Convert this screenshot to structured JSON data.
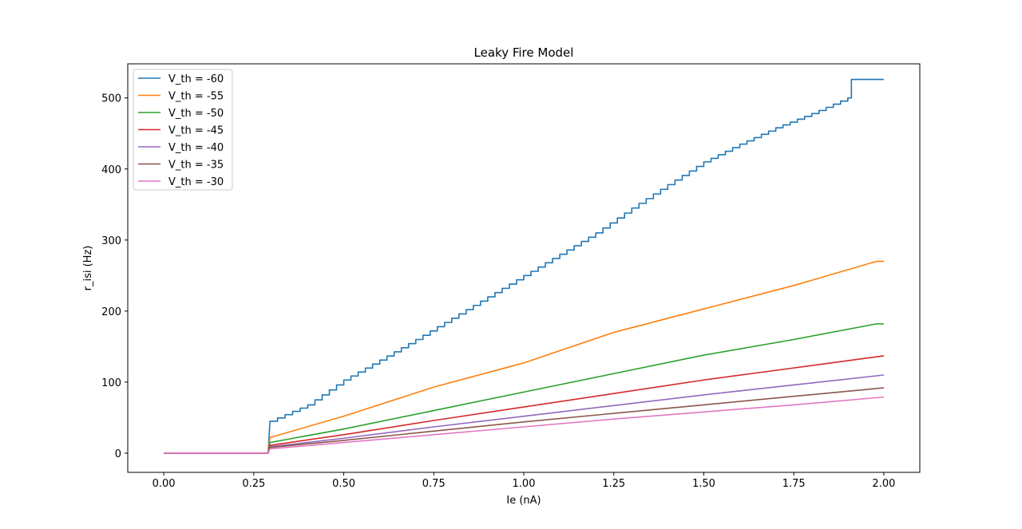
{
  "chart_data": {
    "type": "line",
    "title": "Leaky Fire Model",
    "xlabel": "Ie (nA)",
    "ylabel": "r_isi (Hz)",
    "xlim": [
      -0.1,
      2.1
    ],
    "ylim": [
      -27,
      548
    ],
    "xticks": [
      0.0,
      0.25,
      0.5,
      0.75,
      1.0,
      1.25,
      1.5,
      1.75,
      2.0
    ],
    "xtick_labels": [
      "0.00",
      "0.25",
      "0.50",
      "0.75",
      "1.00",
      "1.25",
      "1.50",
      "1.75",
      "2.00"
    ],
    "yticks": [
      0,
      100,
      200,
      300,
      400,
      500
    ],
    "ytick_labels": [
      "0",
      "100",
      "200",
      "300",
      "400",
      "500"
    ],
    "grid": false,
    "legend_position": "top-left",
    "series": [
      {
        "name": "V_th = -60",
        "color": "#1f77b4",
        "step": true,
        "points": [
          [
            0.0,
            0
          ],
          [
            0.28,
            0
          ],
          [
            0.29,
            0
          ],
          [
            0.295,
            45
          ],
          [
            0.4,
            68
          ],
          [
            0.5,
            103
          ],
          [
            0.6,
            131
          ],
          [
            0.7,
            160
          ],
          [
            0.8,
            190
          ],
          [
            0.9,
            220
          ],
          [
            1.0,
            250
          ],
          [
            1.1,
            280
          ],
          [
            1.2,
            310
          ],
          [
            1.3,
            345
          ],
          [
            1.4,
            378
          ],
          [
            1.5,
            410
          ],
          [
            1.6,
            435
          ],
          [
            1.7,
            458
          ],
          [
            1.8,
            478
          ],
          [
            1.9,
            500
          ],
          [
            1.91,
            526
          ],
          [
            2.0,
            526
          ]
        ]
      },
      {
        "name": "V_th = -55",
        "color": "#ff7f0e",
        "step": false,
        "points": [
          [
            0.0,
            0
          ],
          [
            0.28,
            0
          ],
          [
            0.29,
            0
          ],
          [
            0.295,
            22
          ],
          [
            0.5,
            52
          ],
          [
            0.75,
            93
          ],
          [
            1.0,
            127
          ],
          [
            1.25,
            170
          ],
          [
            1.5,
            203
          ],
          [
            1.75,
            236
          ],
          [
            1.98,
            270
          ],
          [
            2.0,
            270
          ]
        ]
      },
      {
        "name": "V_th = -50",
        "color": "#2ca02c",
        "step": false,
        "points": [
          [
            0.0,
            0
          ],
          [
            0.28,
            0
          ],
          [
            0.29,
            0
          ],
          [
            0.295,
            15
          ],
          [
            0.5,
            34
          ],
          [
            0.75,
            60
          ],
          [
            1.0,
            86
          ],
          [
            1.25,
            112
          ],
          [
            1.5,
            138
          ],
          [
            1.75,
            160
          ],
          [
            1.98,
            182
          ],
          [
            2.0,
            182
          ]
        ]
      },
      {
        "name": "V_th = -45",
        "color": "#d62728",
        "step": false,
        "points": [
          [
            0.0,
            0
          ],
          [
            0.28,
            0
          ],
          [
            0.29,
            0
          ],
          [
            0.295,
            11
          ],
          [
            0.5,
            26
          ],
          [
            0.75,
            46
          ],
          [
            1.0,
            65
          ],
          [
            1.25,
            84
          ],
          [
            1.5,
            103
          ],
          [
            1.75,
            120
          ],
          [
            2.0,
            137
          ]
        ]
      },
      {
        "name": "V_th = -40",
        "color": "#9467bd",
        "step": false,
        "points": [
          [
            0.0,
            0
          ],
          [
            0.28,
            0
          ],
          [
            0.29,
            0
          ],
          [
            0.295,
            9
          ],
          [
            0.5,
            21
          ],
          [
            0.75,
            37
          ],
          [
            1.0,
            52
          ],
          [
            1.25,
            67
          ],
          [
            1.5,
            82
          ],
          [
            1.75,
            96
          ],
          [
            2.0,
            110
          ]
        ]
      },
      {
        "name": "V_th = -35",
        "color": "#8c564b",
        "step": false,
        "points": [
          [
            0.0,
            0
          ],
          [
            0.28,
            0
          ],
          [
            0.29,
            0
          ],
          [
            0.295,
            8
          ],
          [
            0.5,
            18
          ],
          [
            0.75,
            31
          ],
          [
            1.0,
            44
          ],
          [
            1.25,
            56
          ],
          [
            1.5,
            68
          ],
          [
            1.75,
            80
          ],
          [
            2.0,
            92
          ]
        ]
      },
      {
        "name": "V_th = -30",
        "color": "#e377c2",
        "step": false,
        "points": [
          [
            0.0,
            0
          ],
          [
            0.28,
            0
          ],
          [
            0.29,
            0
          ],
          [
            0.295,
            6
          ],
          [
            0.5,
            15
          ],
          [
            0.75,
            26
          ],
          [
            1.0,
            37
          ],
          [
            1.25,
            48
          ],
          [
            1.5,
            58
          ],
          [
            1.75,
            68
          ],
          [
            2.0,
            79
          ]
        ]
      }
    ]
  }
}
